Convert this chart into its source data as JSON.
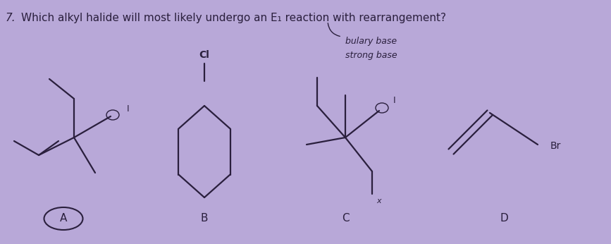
{
  "background_color": "#b8a8d8",
  "question_number": "7.",
  "question_text": "Which alkyl halide will most likely undergo an E₁ reaction with rearrangement?",
  "annotation1": "bulary base",
  "annotation2": "strong base",
  "labels": [
    "A",
    "B",
    "C",
    "D"
  ],
  "fig_width": 8.67,
  "fig_height": 3.46,
  "dpi": 100,
  "line_color": "#2a1f3d",
  "cl_label": "Cl",
  "br_label": "Br",
  "x_label": "x",
  "I_label": "I"
}
